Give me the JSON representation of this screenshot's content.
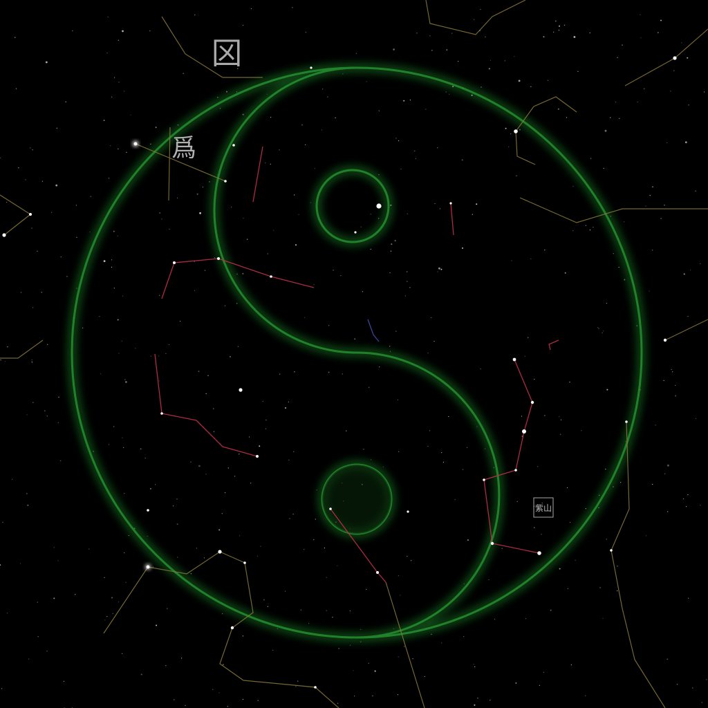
{
  "scene": {
    "background": "#000000",
    "glow_color": "#1f8a2a",
    "zodiac_line_color": "#c0304a",
    "outer_line_color": "#8a7a3a",
    "accent_line_color": "#3a4aa0",
    "star_color": "#ffffff",
    "glyph_color": "#c8c8c8",
    "symbol": "yin-yang"
  },
  "glyphs": [
    {
      "text": "龱",
      "kind": "calligraphy-mark"
    },
    {
      "text": "爲",
      "kind": "calligraphy-mark"
    },
    {
      "text": "紫山",
      "kind": "seal-stamp"
    }
  ]
}
